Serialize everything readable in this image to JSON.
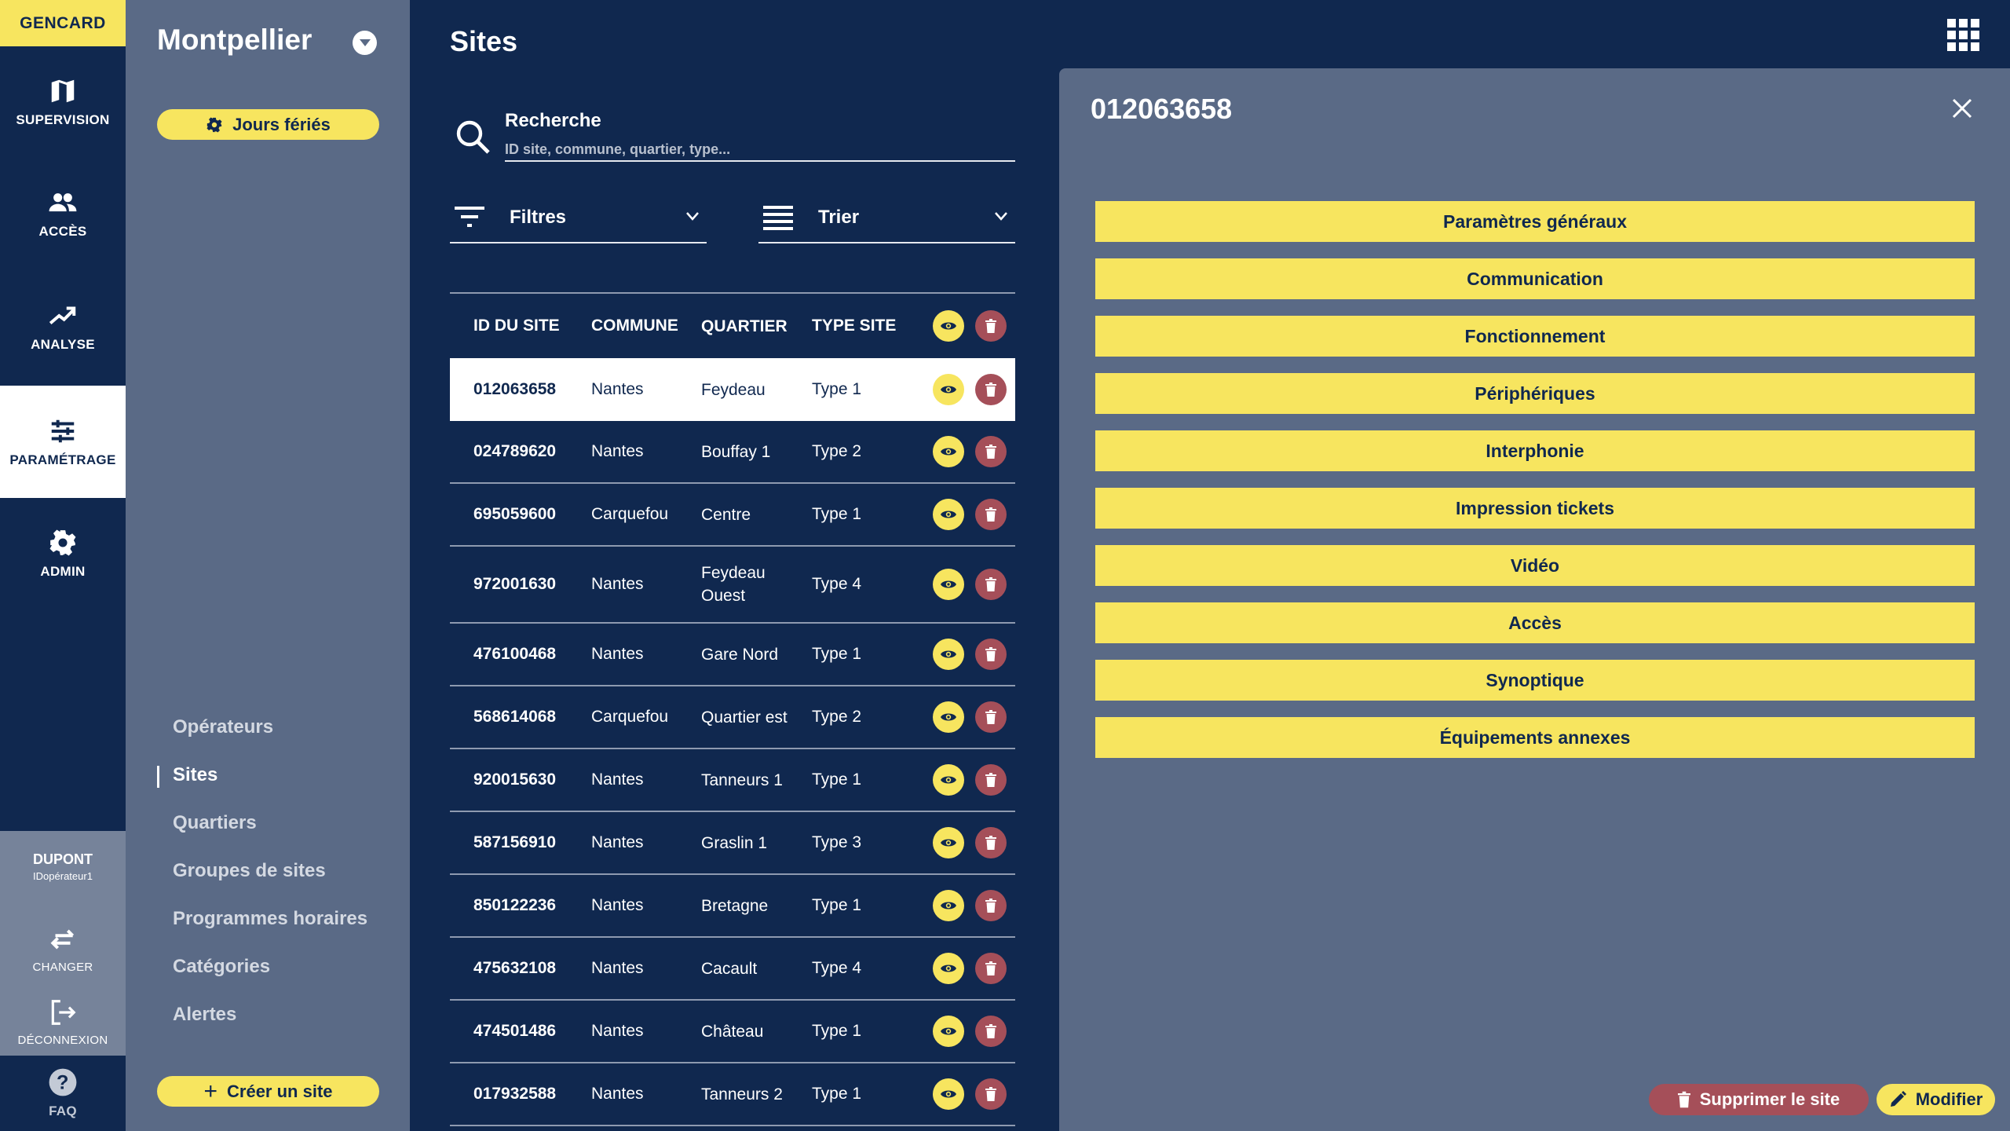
{
  "app": {
    "brand": "GENCARD"
  },
  "rail": {
    "items": [
      {
        "label": "SUPERVISION",
        "icon": "map-icon"
      },
      {
        "label": "ACCÈS",
        "icon": "users-icon"
      },
      {
        "label": "ANALYSE",
        "icon": "trending-up-icon"
      },
      {
        "label": "PARAMÉTRAGE",
        "icon": "sliders-icon",
        "active": true
      },
      {
        "label": "ADMIN",
        "icon": "gear-icon"
      }
    ],
    "user": {
      "name": "DUPONT",
      "id": "IDopérateur1"
    },
    "change_label": "CHANGER",
    "logout_label": "DÉCONNEXION",
    "faq_label": "FAQ"
  },
  "side": {
    "city": "Montpellier",
    "holidays_label": "Jours fériés",
    "nav": [
      "Opérateurs",
      "Sites",
      "Quartiers",
      "Groupes de sites",
      "Programmes horaires",
      "Catégories",
      "Alertes"
    ],
    "active_nav": "Sites",
    "create_label": "Créer un site"
  },
  "main": {
    "title": "Sites",
    "search": {
      "label": "Recherche",
      "placeholder": "ID site, commune, quartier, type...",
      "value": ""
    },
    "filters_label": "Filtres",
    "sort_label": "Trier",
    "columns": [
      "ID DU SITE",
      "COMMUNE",
      "QUARTIER",
      "TYPE SITE"
    ],
    "rows": [
      {
        "id": "012063658",
        "commune": "Nantes",
        "quartier": "Feydeau",
        "type": "Type 1",
        "selected": true
      },
      {
        "id": "024789620",
        "commune": "Nantes",
        "quartier": "Bouffay 1",
        "type": "Type 2"
      },
      {
        "id": "695059600",
        "commune": "Carquefou",
        "quartier": "Centre",
        "type": "Type 1"
      },
      {
        "id": "972001630",
        "commune": "Nantes",
        "quartier": "Feydeau Ouest",
        "type": "Type 4"
      },
      {
        "id": "476100468",
        "commune": "Nantes",
        "quartier": "Gare Nord",
        "type": "Type 1"
      },
      {
        "id": "568614068",
        "commune": "Carquefou",
        "quartier": "Quartier est",
        "type": "Type 2"
      },
      {
        "id": "920015630",
        "commune": "Nantes",
        "quartier": "Tanneurs 1",
        "type": "Type 1"
      },
      {
        "id": "587156910",
        "commune": "Nantes",
        "quartier": "Graslin 1",
        "type": "Type 3"
      },
      {
        "id": "850122236",
        "commune": "Nantes",
        "quartier": "Bretagne",
        "type": "Type 1"
      },
      {
        "id": "475632108",
        "commune": "Nantes",
        "quartier": "Cacault",
        "type": "Type 4"
      },
      {
        "id": "474501486",
        "commune": "Nantes",
        "quartier": "Château",
        "type": "Type 1"
      },
      {
        "id": "017932588",
        "commune": "Nantes",
        "quartier": "Tanneurs 2",
        "type": "Type 1"
      }
    ]
  },
  "detail": {
    "title": "012063658",
    "sections": [
      "Paramètres généraux",
      "Communication",
      "Fonctionnement",
      "Périphériques",
      "Interphonie",
      "Impression tickets",
      "Vidéo",
      "Accès",
      "Synoptique",
      "Équipements annexes"
    ],
    "delete_label": "Supprimer le site",
    "edit_label": "Modifier"
  },
  "colors": {
    "navy": "#10284F",
    "slate": "#5A6A86",
    "yellow": "#F7E55F",
    "red": "#A54F59",
    "gray": "#76839A"
  }
}
